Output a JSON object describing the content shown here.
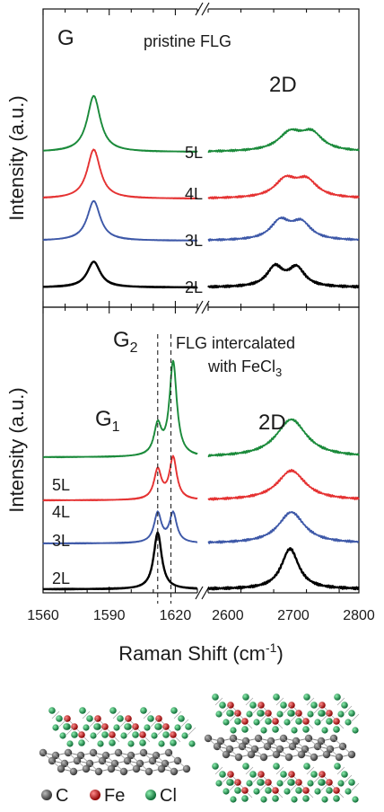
{
  "chart_data": [
    {
      "type": "line",
      "title": "pristine FLG",
      "ylabel": "Intensity (a.u.)",
      "xlabel": "Raman Shift (cm-1)",
      "x_segments": [
        {
          "range": [
            1560,
            1630
          ],
          "ticks": [
            1560,
            1590,
            1620
          ]
        },
        {
          "range": [
            2570,
            2800
          ],
          "ticks": [
            2600,
            2700,
            2800
          ]
        }
      ],
      "peak_labels": [
        {
          "text": "G",
          "x": 1583
        },
        {
          "text": "2D",
          "x": 2690
        }
      ],
      "series": [
        {
          "name": "2L",
          "color": "#000000",
          "offset": 0.0,
          "peaks": [
            [
              1583,
              0.55,
              3.6
            ]
          ],
          "peaks2": [
            [
              2672,
              0.42,
              15
            ],
            [
              2705,
              0.4,
              15
            ]
          ]
        },
        {
          "name": "3L",
          "color": "#3d58a8",
          "offset": 1.0,
          "peaks": [
            [
              1583,
              0.85,
              3.6
            ]
          ],
          "peaks2": [
            [
              2680,
              0.4,
              18
            ],
            [
              2712,
              0.36,
              18
            ]
          ]
        },
        {
          "name": "4L",
          "color": "#e53232",
          "offset": 1.9,
          "peaks": [
            [
              1583,
              1.05,
              3.6
            ]
          ],
          "peaks2": [
            [
              2688,
              0.38,
              20
            ],
            [
              2720,
              0.36,
              20
            ]
          ]
        },
        {
          "name": "5L",
          "color": "#1a8a3a",
          "offset": 2.9,
          "peaks": [
            [
              1583,
              1.2,
              3.6
            ]
          ],
          "peaks2": [
            [
              2695,
              0.38,
              22
            ],
            [
              2728,
              0.36,
              20
            ]
          ]
        }
      ]
    },
    {
      "type": "line",
      "title": "FLG intercalated",
      "title_line2": "with FeCl",
      "title_sub": "3",
      "ylabel": "Intensity (a.u.)",
      "xlabel": "Raman Shift (cm-1)",
      "x_segments": [
        {
          "range": [
            1560,
            1630
          ],
          "ticks": [
            1560,
            1590,
            1620
          ]
        },
        {
          "range": [
            2570,
            2800
          ],
          "ticks": [
            2600,
            2700,
            2800
          ]
        }
      ],
      "reference_lines_x": [
        1612,
        1618
      ],
      "peak_labels": [
        {
          "text": "G",
          "sub": "1",
          "x": 1604
        },
        {
          "text": "G",
          "sub": "2",
          "x": 1614
        },
        {
          "text": "2D",
          "x": 2690
        }
      ],
      "series": [
        {
          "name": "2L",
          "color": "#000000",
          "offset": 0.0,
          "peaks": [
            [
              1612,
              1.05,
              2.2
            ]
          ],
          "peaks2": [
            [
              2695,
              0.75,
              16
            ]
          ]
        },
        {
          "name": "3L",
          "color": "#3d58a8",
          "offset": 0.85,
          "peaks": [
            [
              1612,
              0.55,
              2.0
            ],
            [
              1619,
              0.55,
              2.0
            ]
          ],
          "peaks2": [
            [
              2697,
              0.58,
              24
            ]
          ]
        },
        {
          "name": "4L",
          "color": "#e53232",
          "offset": 1.65,
          "peaks": [
            [
              1612,
              0.55,
              2.0
            ],
            [
              1619,
              0.78,
              2.0
            ]
          ],
          "peaks2": [
            [
              2697,
              0.55,
              26
            ]
          ]
        },
        {
          "name": "5L",
          "color": "#1a8a3a",
          "offset": 2.45,
          "peaks": [
            [
              1612,
              0.55,
              2.0
            ],
            [
              1619,
              1.75,
              2.0
            ]
          ],
          "peaks2": [
            [
              2697,
              0.7,
              28
            ]
          ]
        }
      ]
    }
  ],
  "legend": {
    "items": [
      {
        "text": "C",
        "color": "#555555"
      },
      {
        "text": "Fe",
        "color": "#cc1f1f"
      },
      {
        "text": "Cl",
        "color": "#1e9a55"
      }
    ]
  }
}
